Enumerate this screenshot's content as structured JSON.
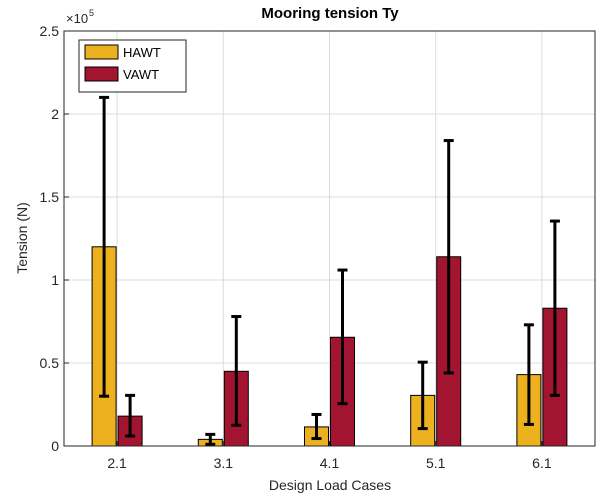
{
  "chart_data": {
    "type": "bar",
    "title": "Mooring tension Ty",
    "xlabel": "Design Load Cases",
    "ylabel": "Tension (N)",
    "exponent": {
      "base": "×10",
      "power": "5"
    },
    "categories": [
      "2.1",
      "3.1",
      "4.1",
      "5.1",
      "6.1"
    ],
    "ylim": [
      0,
      2.5
    ],
    "yticks": [
      0,
      0.5,
      1,
      1.5,
      2,
      2.5
    ],
    "ytick_labels": [
      "0",
      "0.5",
      "1",
      "1.5",
      "2",
      "2.5"
    ],
    "grid": true,
    "legend_position": "top-left",
    "series": [
      {
        "name": "HAWT",
        "color": "#EDB120",
        "values": [
          1.2,
          0.04,
          0.115,
          0.305,
          0.43
        ],
        "err_low": [
          0.3,
          0.01,
          0.045,
          0.105,
          0.13
        ],
        "err_high": [
          2.1,
          0.07,
          0.19,
          0.505,
          0.73
        ]
      },
      {
        "name": "VAWT",
        "color": "#A2142F",
        "values": [
          0.18,
          0.45,
          0.655,
          1.14,
          0.83
        ],
        "err_low": [
          0.06,
          0.125,
          0.255,
          0.44,
          0.305
        ],
        "err_high": [
          0.305,
          0.78,
          1.06,
          1.84,
          1.355
        ]
      }
    ]
  }
}
